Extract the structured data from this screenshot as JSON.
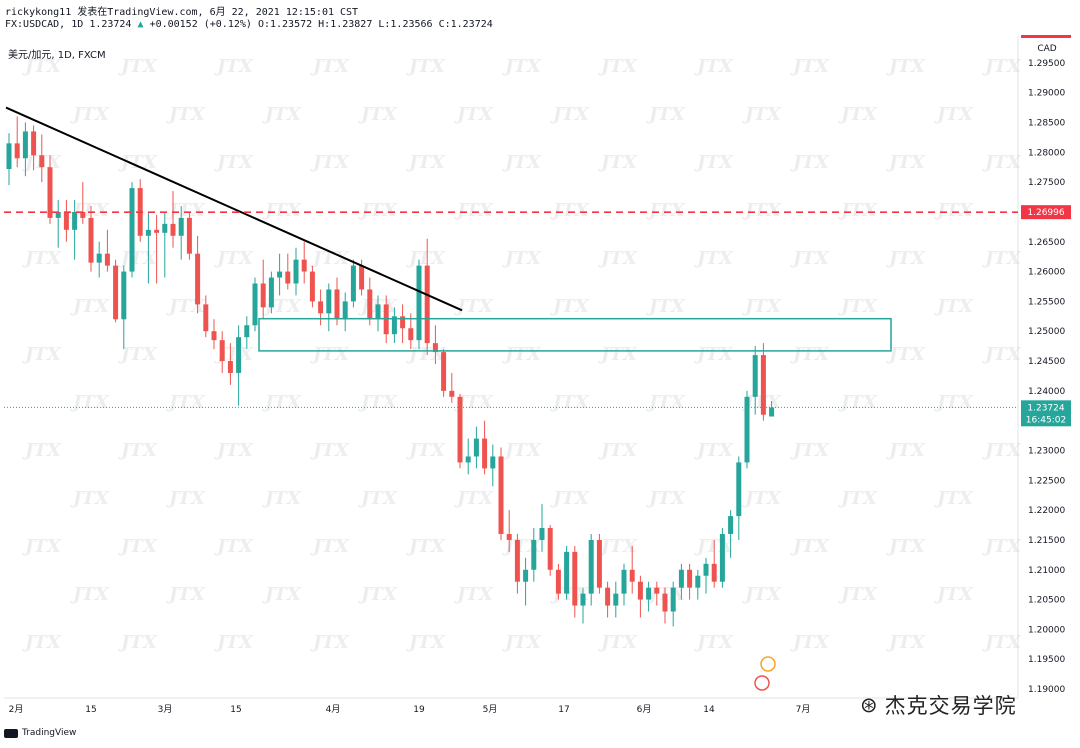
{
  "header": {
    "line1": "rickykong11 发表在TradingView.com, 6月 22, 2021 12:15:01 CST",
    "symbol": "FX:USDCAD, 1D",
    "last_value": "1.23724",
    "change": "+0.00152 (+0.12%)",
    "ohlc": "O:1.23572 H:1.23827 L:1.23566 C:1.23724"
  },
  "legend": "美元/加元, 1D, FXCM",
  "footer_brand": "TradingView",
  "wechat_label": "杰克交易学院",
  "colors": {
    "up": "#26a69a",
    "down": "#ef5350",
    "zone": "#26a69a",
    "resistance": "#f23645",
    "trend": "#000000"
  },
  "chart_data": {
    "type": "candlestick",
    "currency": "CAD",
    "x_ticks": [
      "2月",
      "15",
      "3月",
      "15",
      "4月",
      "19",
      "5月",
      "17",
      "6月",
      "14",
      "7月"
    ],
    "y_ticks": [
      "1.29500",
      "1.29000",
      "1.28500",
      "1.28000",
      "1.27500",
      "1.27000",
      "1.26500",
      "1.26000",
      "1.25500",
      "1.25000",
      "1.24500",
      "1.24000",
      "1.23500",
      "1.23000",
      "1.22500",
      "1.22000",
      "1.21500",
      "1.21000",
      "1.20500",
      "1.20000",
      "1.19500",
      "1.19000"
    ],
    "ylim": [
      1.1885,
      1.2995
    ],
    "resistance_level": "1.26996",
    "current_price": "1.23724",
    "countdown": "16:45:02",
    "zone": {
      "low": 1.2467,
      "high": 1.2521
    },
    "trendline": {
      "start_price": 1.2875,
      "end_price": 1.2535
    },
    "candles": [
      [
        1.2772,
        1.2832,
        1.2745,
        1.2815
      ],
      [
        1.2815,
        1.286,
        1.2775,
        1.279
      ],
      [
        1.279,
        1.285,
        1.276,
        1.2835
      ],
      [
        1.2835,
        1.2845,
        1.277,
        1.2795
      ],
      [
        1.2795,
        1.283,
        1.275,
        1.2775
      ],
      [
        1.2775,
        1.2795,
        1.268,
        1.269
      ],
      [
        1.269,
        1.272,
        1.264,
        1.27
      ],
      [
        1.27,
        1.272,
        1.265,
        1.267
      ],
      [
        1.267,
        1.272,
        1.262,
        1.27
      ],
      [
        1.27,
        1.275,
        1.268,
        1.269
      ],
      [
        1.269,
        1.271,
        1.26,
        1.2615
      ],
      [
        1.2615,
        1.265,
        1.259,
        1.263
      ],
      [
        1.263,
        1.267,
        1.26,
        1.261
      ],
      [
        1.261,
        1.262,
        1.2515,
        1.252
      ],
      [
        1.252,
        1.261,
        1.247,
        1.26
      ],
      [
        1.26,
        1.275,
        1.259,
        1.274
      ],
      [
        1.274,
        1.2755,
        1.265,
        1.266
      ],
      [
        1.266,
        1.27,
        1.258,
        1.267
      ],
      [
        1.267,
        1.2695,
        1.258,
        1.2665
      ],
      [
        1.2665,
        1.27,
        1.259,
        1.268
      ],
      [
        1.268,
        1.2735,
        1.264,
        1.266
      ],
      [
        1.266,
        1.271,
        1.262,
        1.269
      ],
      [
        1.269,
        1.27,
        1.262,
        1.263
      ],
      [
        1.263,
        1.266,
        1.253,
        1.2545
      ],
      [
        1.2545,
        1.256,
        1.249,
        1.25
      ],
      [
        1.25,
        1.252,
        1.247,
        1.2485
      ],
      [
        1.2485,
        1.25,
        1.243,
        1.245
      ],
      [
        1.245,
        1.248,
        1.241,
        1.243
      ],
      [
        1.243,
        1.251,
        1.2375,
        1.249
      ],
      [
        1.249,
        1.2525,
        1.247,
        1.251
      ],
      [
        1.251,
        1.259,
        1.25,
        1.258
      ],
      [
        1.258,
        1.262,
        1.252,
        1.254
      ],
      [
        1.254,
        1.26,
        1.253,
        1.259
      ],
      [
        1.259,
        1.263,
        1.256,
        1.26
      ],
      [
        1.26,
        1.263,
        1.257,
        1.258
      ],
      [
        1.258,
        1.264,
        1.256,
        1.262
      ],
      [
        1.262,
        1.265,
        1.258,
        1.26
      ],
      [
        1.26,
        1.261,
        1.254,
        1.255
      ],
      [
        1.255,
        1.257,
        1.251,
        1.253
      ],
      [
        1.253,
        1.258,
        1.25,
        1.257
      ],
      [
        1.257,
        1.259,
        1.251,
        1.252
      ],
      [
        1.252,
        1.2565,
        1.25,
        1.255
      ],
      [
        1.255,
        1.262,
        1.254,
        1.261
      ],
      [
        1.261,
        1.262,
        1.256,
        1.257
      ],
      [
        1.257,
        1.259,
        1.251,
        1.252
      ],
      [
        1.252,
        1.256,
        1.25,
        1.2545
      ],
      [
        1.2545,
        1.256,
        1.248,
        1.2495
      ],
      [
        1.2495,
        1.254,
        1.248,
        1.2525
      ],
      [
        1.2525,
        1.2545,
        1.248,
        1.2505
      ],
      [
        1.2505,
        1.253,
        1.247,
        1.2485
      ],
      [
        1.2485,
        1.262,
        1.247,
        1.261
      ],
      [
        1.261,
        1.2655,
        1.246,
        1.248
      ],
      [
        1.248,
        1.251,
        1.2445,
        1.2465
      ],
      [
        1.2465,
        1.247,
        1.239,
        1.24
      ],
      [
        1.24,
        1.243,
        1.238,
        1.239
      ],
      [
        1.239,
        1.2395,
        1.227,
        1.228
      ],
      [
        1.228,
        1.232,
        1.226,
        1.229
      ],
      [
        1.229,
        1.234,
        1.227,
        1.232
      ],
      [
        1.232,
        1.235,
        1.226,
        1.227
      ],
      [
        1.227,
        1.231,
        1.224,
        1.229
      ],
      [
        1.229,
        1.2305,
        1.215,
        1.216
      ],
      [
        1.216,
        1.22,
        1.213,
        1.215
      ],
      [
        1.215,
        1.216,
        1.206,
        1.208
      ],
      [
        1.208,
        1.212,
        1.204,
        1.21
      ],
      [
        1.21,
        1.217,
        1.208,
        1.215
      ],
      [
        1.215,
        1.221,
        1.213,
        1.217
      ],
      [
        1.217,
        1.2175,
        1.209,
        1.21
      ],
      [
        1.21,
        1.211,
        1.205,
        1.206
      ],
      [
        1.206,
        1.214,
        1.205,
        1.213
      ],
      [
        1.213,
        1.214,
        1.202,
        1.204
      ],
      [
        1.204,
        1.207,
        1.201,
        1.206
      ],
      [
        1.206,
        1.216,
        1.204,
        1.215
      ],
      [
        1.215,
        1.216,
        1.206,
        1.207
      ],
      [
        1.207,
        1.208,
        1.202,
        1.204
      ],
      [
        1.204,
        1.208,
        1.202,
        1.206
      ],
      [
        1.206,
        1.211,
        1.204,
        1.21
      ],
      [
        1.21,
        1.214,
        1.206,
        1.208
      ],
      [
        1.208,
        1.209,
        1.202,
        1.205
      ],
      [
        1.205,
        1.208,
        1.203,
        1.207
      ],
      [
        1.207,
        1.208,
        1.204,
        1.206
      ],
      [
        1.206,
        1.207,
        1.201,
        1.203
      ],
      [
        1.203,
        1.208,
        1.2005,
        1.207
      ],
      [
        1.207,
        1.211,
        1.205,
        1.21
      ],
      [
        1.21,
        1.211,
        1.205,
        1.207
      ],
      [
        1.207,
        1.21,
        1.205,
        1.209
      ],
      [
        1.209,
        1.212,
        1.206,
        1.211
      ],
      [
        1.211,
        1.215,
        1.207,
        1.208
      ],
      [
        1.208,
        1.217,
        1.207,
        1.216
      ],
      [
        1.216,
        1.22,
        1.212,
        1.219
      ],
      [
        1.219,
        1.229,
        1.215,
        1.228
      ],
      [
        1.228,
        1.24,
        1.227,
        1.239
      ],
      [
        1.239,
        1.2475,
        1.236,
        1.246
      ],
      [
        1.246,
        1.248,
        1.235,
        1.236
      ],
      [
        1.2357,
        1.2383,
        1.2357,
        1.2372
      ]
    ]
  }
}
